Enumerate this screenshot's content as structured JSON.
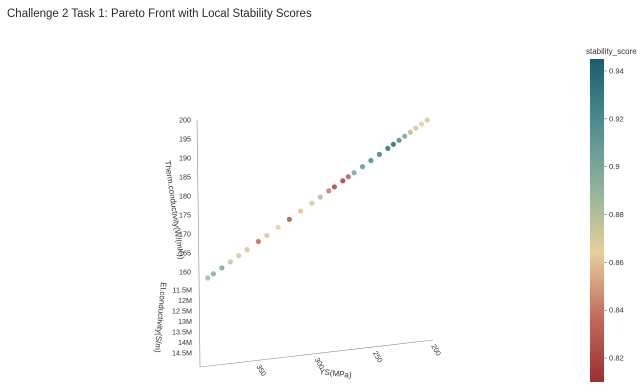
{
  "title": "Challenge 2 Task 1: Pareto Front with Local Stability Scores",
  "chart_data": {
    "type": "scatter",
    "title": "Challenge 2 Task 1: Pareto Front with Local Stability Scores",
    "axes": {
      "x": {
        "label": "YS(MPa)",
        "ticks": [
          "350",
          "300",
          "250",
          "200"
        ]
      },
      "y": {
        "label": "El.conductivity(S/m)",
        "ticks": [
          "11.5M",
          "12M",
          "12.5M",
          "13M",
          "13.5M",
          "14M",
          "14.5M"
        ]
      },
      "z": {
        "label": "Therm.conductivity(W/(mK))",
        "ticks": [
          "160",
          "165",
          "170",
          "175",
          "180",
          "185",
          "190",
          "195",
          "200"
        ]
      }
    },
    "colorbar": {
      "title": "stability_score",
      "ticks": [
        "0.94",
        "0.92",
        "0.9",
        "0.88",
        "0.86",
        "0.84",
        "0.82"
      ],
      "range": [
        0.81,
        0.945
      ],
      "colors": [
        "#9c2f32",
        "#c26a5c",
        "#e8cf99",
        "#8fb29b",
        "#4e8e91",
        "#175e6e"
      ]
    },
    "points": [
      {
        "ys": 385,
        "z": 160.5,
        "s": 0.885
      },
      {
        "ys": 383,
        "z": 161.5,
        "s": 0.895
      },
      {
        "ys": 380,
        "z": 163.0,
        "s": 0.9
      },
      {
        "ys": 376,
        "z": 164.5,
        "s": 0.875
      },
      {
        "ys": 372,
        "z": 166.0,
        "s": 0.87
      },
      {
        "ys": 368,
        "z": 167.5,
        "s": 0.86
      },
      {
        "ys": 362,
        "z": 169.5,
        "s": 0.835
      },
      {
        "ys": 358,
        "z": 171.0,
        "s": 0.87
      },
      {
        "ys": 352,
        "z": 173.0,
        "s": 0.865
      },
      {
        "ys": 345,
        "z": 175.0,
        "s": 0.825
      },
      {
        "ys": 338,
        "z": 177.0,
        "s": 0.86
      },
      {
        "ys": 330,
        "z": 179.0,
        "s": 0.87
      },
      {
        "ys": 322,
        "z": 180.5,
        "s": 0.88
      },
      {
        "ys": 315,
        "z": 182.0,
        "s": 0.84
      },
      {
        "ys": 310,
        "z": 183.0,
        "s": 0.82
      },
      {
        "ys": 305,
        "z": 184.5,
        "s": 0.815
      },
      {
        "ys": 300,
        "z": 185.5,
        "s": 0.83
      },
      {
        "ys": 295,
        "z": 186.5,
        "s": 0.9
      },
      {
        "ys": 290,
        "z": 188.0,
        "s": 0.91
      },
      {
        "ys": 285,
        "z": 189.5,
        "s": 0.92
      },
      {
        "ys": 278,
        "z": 191.0,
        "s": 0.925
      },
      {
        "ys": 272,
        "z": 192.5,
        "s": 0.935
      },
      {
        "ys": 265,
        "z": 193.5,
        "s": 0.94
      },
      {
        "ys": 258,
        "z": 194.5,
        "s": 0.92
      },
      {
        "ys": 250,
        "z": 195.5,
        "s": 0.9
      },
      {
        "ys": 243,
        "z": 196.5,
        "s": 0.88
      },
      {
        "ys": 236,
        "z": 197.5,
        "s": 0.87
      },
      {
        "ys": 228,
        "z": 198.5,
        "s": 0.865
      },
      {
        "ys": 220,
        "z": 199.5,
        "s": 0.87
      }
    ]
  }
}
